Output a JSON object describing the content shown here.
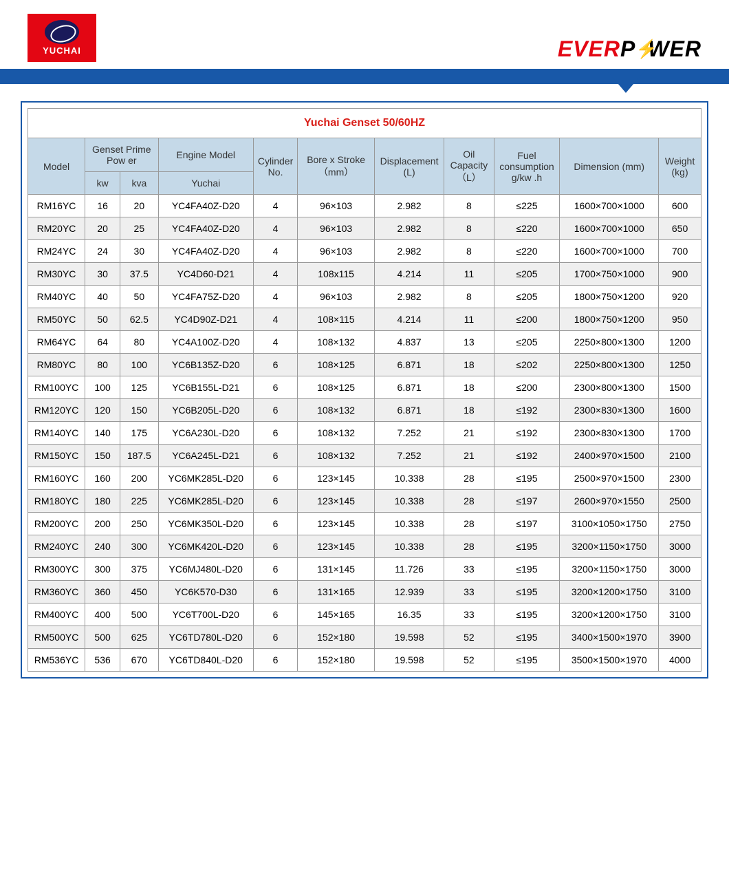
{
  "header": {
    "logo_left_text": "YUCHAI",
    "logo_right_ever": "EVER",
    "logo_right_p": "P",
    "logo_right_wer": "WER"
  },
  "colors": {
    "brand_red": "#e30613",
    "brand_blue": "#1858a8",
    "header_bg": "#c5d9e8",
    "row_alt": "#efefef",
    "title_red": "#d91e18",
    "border": "#999999"
  },
  "table": {
    "title": "Yuchai Genset 50/60HZ",
    "headers": {
      "model": "Model",
      "genset_prime": "Genset Prime Pow er",
      "kw": "kw",
      "kva": "kva",
      "engine_model": "Engine Model",
      "yuchai": "Yuchai",
      "cylinder": "Cylinder No.",
      "bore_stroke": "Bore x Stroke （mm）",
      "displacement": "Displacement (L)",
      "oil_capacity": "Oil Capacity （L）",
      "fuel_consumption": "Fuel consumption g/kw .h",
      "dimension": "Dimension (mm)",
      "weight": "Weight (kg)"
    },
    "rows": [
      {
        "model": "RM16YC",
        "kw": "16",
        "kva": "20",
        "engine": "YC4FA40Z-D20",
        "cyl": "4",
        "bore": "96×103",
        "disp": "2.982",
        "oil": "8",
        "fuel": "≤225",
        "dim": "1600×700×1000",
        "weight": "600"
      },
      {
        "model": "RM20YC",
        "kw": "20",
        "kva": "25",
        "engine": "YC4FA40Z-D20",
        "cyl": "4",
        "bore": "96×103",
        "disp": "2.982",
        "oil": "8",
        "fuel": "≤220",
        "dim": "1600×700×1000",
        "weight": "650"
      },
      {
        "model": "RM24YC",
        "kw": "24",
        "kva": "30",
        "engine": "YC4FA40Z-D20",
        "cyl": "4",
        "bore": "96×103",
        "disp": "2.982",
        "oil": "8",
        "fuel": "≤220",
        "dim": "1600×700×1000",
        "weight": "700"
      },
      {
        "model": "RM30YC",
        "kw": "30",
        "kva": "37.5",
        "engine": "YC4D60-D21",
        "cyl": "4",
        "bore": "108x115",
        "disp": "4.214",
        "oil": "11",
        "fuel": "≤205",
        "dim": "1700×750×1000",
        "weight": "900"
      },
      {
        "model": "RM40YC",
        "kw": "40",
        "kva": "50",
        "engine": "YC4FA75Z-D20",
        "cyl": "4",
        "bore": "96×103",
        "disp": "2.982",
        "oil": "8",
        "fuel": "≤205",
        "dim": "1800×750×1200",
        "weight": "920"
      },
      {
        "model": "RM50YC",
        "kw": "50",
        "kva": "62.5",
        "engine": "YC4D90Z-D21",
        "cyl": "4",
        "bore": "108×115",
        "disp": "4.214",
        "oil": "11",
        "fuel": "≤200",
        "dim": "1800×750×1200",
        "weight": "950"
      },
      {
        "model": "RM64YC",
        "kw": "64",
        "kva": "80",
        "engine": "YC4A100Z-D20",
        "cyl": "4",
        "bore": "108×132",
        "disp": "4.837",
        "oil": "13",
        "fuel": "≤205",
        "dim": "2250×800×1300",
        "weight": "1200"
      },
      {
        "model": "RM80YC",
        "kw": "80",
        "kva": "100",
        "engine": "YC6B135Z-D20",
        "cyl": "6",
        "bore": "108×125",
        "disp": "6.871",
        "oil": "18",
        "fuel": "≤202",
        "dim": "2250×800×1300",
        "weight": "1250"
      },
      {
        "model": "RM100YC",
        "kw": "100",
        "kva": "125",
        "engine": "YC6B155L-D21",
        "cyl": "6",
        "bore": "108×125",
        "disp": "6.871",
        "oil": "18",
        "fuel": "≤200",
        "dim": "2300×800×1300",
        "weight": "1500"
      },
      {
        "model": "RM120YC",
        "kw": "120",
        "kva": "150",
        "engine": "YC6B205L-D20",
        "cyl": "6",
        "bore": "108×132",
        "disp": "6.871",
        "oil": "18",
        "fuel": "≤192",
        "dim": "2300×830×1300",
        "weight": "1600"
      },
      {
        "model": "RM140YC",
        "kw": "140",
        "kva": "175",
        "engine": "YC6A230L-D20",
        "cyl": "6",
        "bore": "108×132",
        "disp": "7.252",
        "oil": "21",
        "fuel": "≤192",
        "dim": "2300×830×1300",
        "weight": "1700"
      },
      {
        "model": "RM150YC",
        "kw": "150",
        "kva": "187.5",
        "engine": "YC6A245L-D21",
        "cyl": "6",
        "bore": "108×132",
        "disp": "7.252",
        "oil": "21",
        "fuel": "≤192",
        "dim": "2400×970×1500",
        "weight": "2100"
      },
      {
        "model": "RM160YC",
        "kw": "160",
        "kva": "200",
        "engine": "YC6MK285L-D20",
        "cyl": "6",
        "bore": "123×145",
        "disp": "10.338",
        "oil": "28",
        "fuel": "≤195",
        "dim": "2500×970×1500",
        "weight": "2300"
      },
      {
        "model": "RM180YC",
        "kw": "180",
        "kva": "225",
        "engine": "YC6MK285L-D20",
        "cyl": "6",
        "bore": "123×145",
        "disp": "10.338",
        "oil": "28",
        "fuel": "≤197",
        "dim": "2600×970×1550",
        "weight": "2500"
      },
      {
        "model": "RM200YC",
        "kw": "200",
        "kva": "250",
        "engine": "YC6MK350L-D20",
        "cyl": "6",
        "bore": "123×145",
        "disp": "10.338",
        "oil": "28",
        "fuel": "≤197",
        "dim": "3100×1050×1750",
        "weight": "2750"
      },
      {
        "model": "RM240YC",
        "kw": "240",
        "kva": "300",
        "engine": "YC6MK420L-D20",
        "cyl": "6",
        "bore": "123×145",
        "disp": "10.338",
        "oil": "28",
        "fuel": "≤195",
        "dim": "3200×1150×1750",
        "weight": "3000"
      },
      {
        "model": "RM300YC",
        "kw": "300",
        "kva": "375",
        "engine": "YC6MJ480L-D20",
        "cyl": "6",
        "bore": "131×145",
        "disp": "11.726",
        "oil": "33",
        "fuel": "≤195",
        "dim": "3200×1150×1750",
        "weight": "3000"
      },
      {
        "model": "RM360YC",
        "kw": "360",
        "kva": "450",
        "engine": "YC6K570-D30",
        "cyl": "6",
        "bore": "131×165",
        "disp": "12.939",
        "oil": "33",
        "fuel": "≤195",
        "dim": "3200×1200×1750",
        "weight": "3100"
      },
      {
        "model": "RM400YC",
        "kw": "400",
        "kva": "500",
        "engine": "YC6T700L-D20",
        "cyl": "6",
        "bore": "145×165",
        "disp": "16.35",
        "oil": "33",
        "fuel": "≤195",
        "dim": "3200×1200×1750",
        "weight": "3100"
      },
      {
        "model": "RM500YC",
        "kw": "500",
        "kva": "625",
        "engine": "YC6TD780L-D20",
        "cyl": "6",
        "bore": "152×180",
        "disp": "19.598",
        "oil": "52",
        "fuel": "≤195",
        "dim": "3400×1500×1970",
        "weight": "3900"
      },
      {
        "model": "RM536YC",
        "kw": "536",
        "kva": "670",
        "engine": "YC6TD840L-D20",
        "cyl": "6",
        "bore": "152×180",
        "disp": "19.598",
        "oil": "52",
        "fuel": "≤195",
        "dim": "3500×1500×1970",
        "weight": "4000"
      }
    ]
  }
}
